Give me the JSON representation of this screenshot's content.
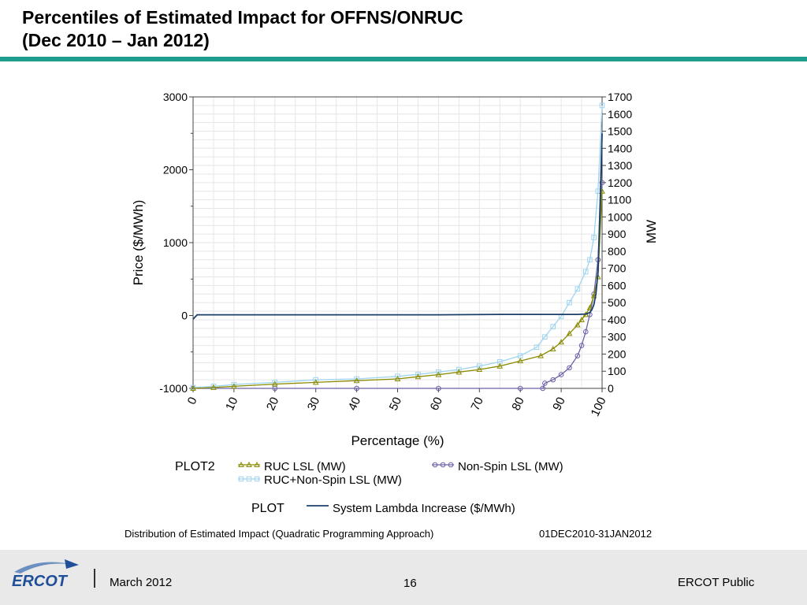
{
  "slide": {
    "title_line1": "Percentiles of Estimated Impact for OFFNS/ONRUC",
    "title_line2": "(Dec 2010 – Jan 2012)",
    "rule_color": "#1f9e8e"
  },
  "captions": {
    "left": "Distribution of Estimated Impact (Quadratic Programming Approach)",
    "right": "01DEC2010-31JAN2012"
  },
  "footer": {
    "logo_text": "ERCOT",
    "date": "March 2012",
    "page_number": "16",
    "classification": "ERCOT Public"
  },
  "chart_data": {
    "type": "line",
    "xlabel": "Percentage (%)",
    "ylabel_left": "Price ($/MWh)",
    "ylabel_right": "MW",
    "xlim": [
      0,
      100
    ],
    "ylim_left": [
      -1000,
      3000
    ],
    "ylim_right": [
      0,
      1700
    ],
    "x_ticks": [
      "0",
      "10",
      "20",
      "30",
      "40",
      "50",
      "60",
      "70",
      "80",
      "90",
      "100"
    ],
    "y_ticks_left": [
      "3000",
      "2000",
      "1000",
      "0",
      "-1000"
    ],
    "y_ticks_right": [
      "1700",
      "1600",
      "1500",
      "1400",
      "1300",
      "1200",
      "1100",
      "1000",
      "900",
      "800",
      "700",
      "600",
      "500",
      "400",
      "300",
      "200",
      "100",
      "0"
    ],
    "grid": true,
    "legend": {
      "plot2_label": "PLOT2",
      "plot_label": "PLOT"
    },
    "series": [
      {
        "name": "RUC LSL (MW)",
        "group": "PLOT2",
        "axis": "right",
        "color": "#8a8a00",
        "marker": "triangle",
        "x": [
          0,
          5,
          10,
          20,
          30,
          40,
          50,
          55,
          60,
          65,
          70,
          75,
          80,
          85,
          88,
          90,
          92,
          94,
          95,
          96,
          97,
          98,
          99,
          100
        ],
        "y": [
          0,
          5,
          12,
          25,
          35,
          45,
          55,
          68,
          80,
          95,
          110,
          130,
          160,
          190,
          230,
          270,
          320,
          370,
          400,
          430,
          470,
          540,
          650,
          1150
        ]
      },
      {
        "name": "Non-Spin LSL (MW)",
        "group": "PLOT2",
        "axis": "right",
        "color": "#6b62a8",
        "marker": "circle",
        "x": [
          0,
          20,
          40,
          60,
          80,
          85.5,
          86,
          88,
          90,
          92,
          94,
          95,
          96,
          97,
          98,
          99,
          100
        ],
        "y": [
          0,
          0,
          0,
          0,
          0,
          0,
          30,
          50,
          80,
          120,
          190,
          250,
          330,
          430,
          550,
          750,
          1200
        ]
      },
      {
        "name": "RUC+Non-Spin LSL (MW)",
        "group": "PLOT2",
        "axis": "right",
        "color": "#9fd4f0",
        "marker": "square",
        "x": [
          0,
          5,
          10,
          20,
          30,
          40,
          50,
          55,
          60,
          65,
          70,
          75,
          80,
          84,
          86,
          88,
          90,
          92,
          94,
          96,
          97,
          98,
          99,
          100
        ],
        "y": [
          5,
          12,
          22,
          35,
          50,
          55,
          70,
          82,
          95,
          110,
          130,
          155,
          190,
          240,
          300,
          360,
          420,
          500,
          580,
          680,
          750,
          880,
          1150,
          1650
        ]
      },
      {
        "name": "System Lambda Increase ($/MWh)",
        "group": "PLOT",
        "axis": "left",
        "color": "#1a3f6b",
        "marker": "none",
        "x": [
          0,
          1,
          20,
          40,
          60,
          75,
          90,
          94,
          96,
          97,
          97.5,
          98,
          98.5,
          99,
          99.5,
          100
        ],
        "y": [
          -50,
          10,
          10,
          10,
          10,
          15,
          15,
          15,
          20,
          40,
          80,
          150,
          300,
          600,
          1500,
          2500
        ]
      }
    ]
  }
}
